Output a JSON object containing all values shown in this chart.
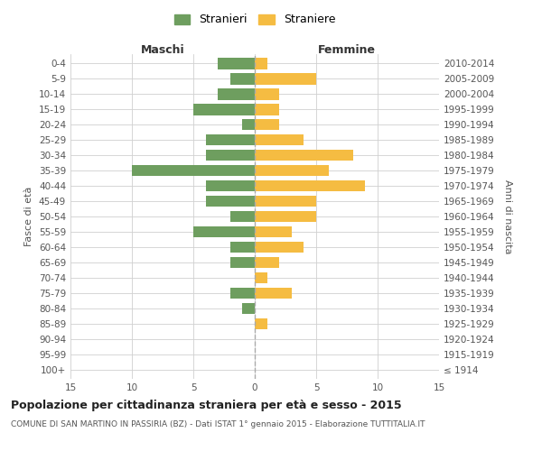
{
  "age_groups": [
    "100+",
    "95-99",
    "90-94",
    "85-89",
    "80-84",
    "75-79",
    "70-74",
    "65-69",
    "60-64",
    "55-59",
    "50-54",
    "45-49",
    "40-44",
    "35-39",
    "30-34",
    "25-29",
    "20-24",
    "15-19",
    "10-14",
    "5-9",
    "0-4"
  ],
  "birth_years": [
    "≤ 1914",
    "1915-1919",
    "1920-1924",
    "1925-1929",
    "1930-1934",
    "1935-1939",
    "1940-1944",
    "1945-1949",
    "1950-1954",
    "1955-1959",
    "1960-1964",
    "1965-1969",
    "1970-1974",
    "1975-1979",
    "1980-1984",
    "1985-1989",
    "1990-1994",
    "1995-1999",
    "2000-2004",
    "2005-2009",
    "2010-2014"
  ],
  "maschi": [
    0,
    0,
    0,
    0,
    1,
    2,
    0,
    2,
    2,
    5,
    2,
    4,
    4,
    10,
    4,
    4,
    1,
    5,
    3,
    2,
    3
  ],
  "femmine": [
    0,
    0,
    0,
    1,
    0,
    3,
    1,
    2,
    4,
    3,
    5,
    5,
    9,
    6,
    8,
    4,
    2,
    2,
    2,
    5,
    1
  ],
  "color_maschi": "#6e9e5f",
  "color_femmine": "#f5bc42",
  "title": "Popolazione per cittadinanza straniera per età e sesso - 2015",
  "subtitle": "COMUNE DI SAN MARTINO IN PASSIRIA (BZ) - Dati ISTAT 1° gennaio 2015 - Elaborazione TUTTITALIA.IT",
  "xlabel_left": "Maschi",
  "xlabel_right": "Femmine",
  "ylabel": "Fasce di età",
  "ylabel_right": "Anni di nascita",
  "legend_maschi": "Stranieri",
  "legend_femmine": "Straniere",
  "xlim": 15,
  "xticks": [
    -15,
    -10,
    -5,
    0,
    5,
    10,
    15
  ],
  "background_color": "#ffffff",
  "grid_color": "#d0d0d0",
  "title_fontsize": 9,
  "subtitle_fontsize": 6.5,
  "tick_fontsize": 7.5,
  "label_fontsize": 8,
  "legend_fontsize": 9,
  "header_fontsize": 9,
  "bar_height": 0.75
}
